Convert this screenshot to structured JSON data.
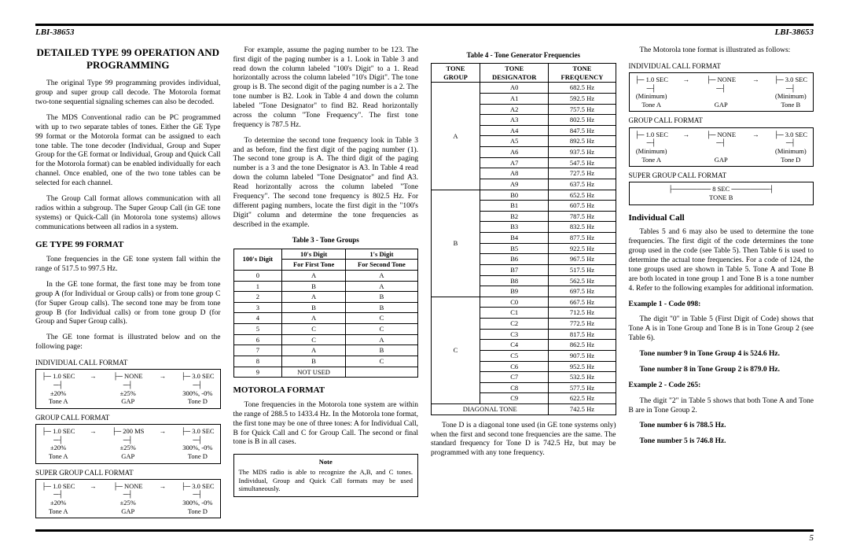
{
  "doc_id": "LBI-38653",
  "page_number": "5",
  "title": "DETAILED TYPE 99 OPERATION AND PROGRAMMING",
  "para1": "The original Type 99 programming provides individual, group and super group call decode. The Motorola format two-tone sequential signaling schemes can also be decoded.",
  "para2": "The MDS Conventional radio can be PC programmed with up to two separate tables of tones. Either the GE Type 99 format or the Motorola format can be assigned to each tone table. The tone decoder (Individual, Group and Super Group for the GE format or Individual, Group and Quick Call for the Motorola format) can be enabled individually for each channel. Once enabled, one of the two tone tables can be selected for each channel.",
  "para3": "The Group Call format allows communication with all radios within a subgroup. The Super Group Call (in GE tone systems) or Quick-Call (in Motorola tone systems) allows communications between all radios in a system.",
  "ge_h": "GE TYPE 99 FORMAT",
  "ge_p1": "Tone frequencies in the GE tone system fall within the range of 517.5 to 997.5 Hz.",
  "ge_p2": "In the GE tone format, the first tone may be from tone group A (for Individual or Group calls) or from tone group C (for Super Group calls). The second tone may be from tone group B (for Individual calls) or from tone group D (for Group and Super Group calls).",
  "ge_p3": "The GE tone format is illustrated below and on the following page:",
  "fmt_ind": "INDIVIDUAL CALL FORMAT",
  "fmt_grp": "GROUP CALL FORMAT",
  "fmt_sgrp": "SUPER GROUP CALL FORMAT",
  "ge_ind": {
    "c1a": "1.0 SEC",
    "c1b": "±20%",
    "c1c": "Tone A",
    "c2a": "NONE",
    "c2b": "±25%",
    "c2c": "GAP",
    "c3a": "3.0 SEC",
    "c3b": "300%, -0%",
    "c3c": "Tone D"
  },
  "ge_grp": {
    "c1a": "1.0 SEC",
    "c1b": "±20%",
    "c1c": "Tone A",
    "c2a": "200 MS",
    "c2b": "±25%",
    "c2c": "GAP",
    "c3a": "3.0 SEC",
    "c3b": "300%, -0%",
    "c3c": "Tone D"
  },
  "ge_sgrp": {
    "c1a": "1.0 SEC",
    "c1b": "±20%",
    "c1c": "Tone A",
    "c2a": "NONE",
    "c2b": "±25%",
    "c2c": "GAP",
    "c3a": "3.0 SEC",
    "c3b": "300%, -0%",
    "c3c": "Tone D"
  },
  "ex_p1": "For example, assume the paging number to be 123. The first digit of the paging number is a 1. Look in Table 3 and read down the column labeled \"100's Digit\" to a 1. Read horizontally across the column labeled \"10's Digit\". The tone group is B. The second digit of the paging number is a 2. The tone number is B2. Look in Table 4 and down the column labeled \"Tone Designator\" to find B2. Read horizontally across the column \"Tone Frequency\". The first tone frequency is 787.5 Hz.",
  "ex_p2": "To determine the second tone frequency look in Table 3 and as before, find the first digit of the paging number (1). The second tone group is A. The third digit of the paging number is a 3 and the tone Designator is A3. In Table 4 read down the column labeled \"Tone Designator\" and find A3. Read horizontally across the column labeled \"Tone Frequency\". The second tone frequency is 802.5 Hz. For different paging numbers, locate the first digit in the \"100's Digit\" column and determine the tone frequencies as described in the example.",
  "t3_cap": "Table 3 - Tone Groups",
  "t3_h1": "100's Digit",
  "t3_h2": "10's Digit",
  "t3_h3": "1's Digit",
  "t3_sub1": "For First Tone",
  "t3_sub2": "For Second Tone",
  "t3_rows": [
    [
      "0",
      "A",
      "A"
    ],
    [
      "1",
      "B",
      "A"
    ],
    [
      "2",
      "A",
      "B"
    ],
    [
      "3",
      "B",
      "B"
    ],
    [
      "4",
      "A",
      "C"
    ],
    [
      "5",
      "C",
      "C"
    ],
    [
      "6",
      "C",
      "A"
    ],
    [
      "7",
      "A",
      "B"
    ],
    [
      "8",
      "B",
      "C"
    ],
    [
      "9",
      "NOT USED",
      ""
    ]
  ],
  "mot_h": "MOTOROLA FORMAT",
  "mot_p1": "Tone frequencies in the Motorola tone system are within the range of 288.5 to 1433.4 Hz. In the Motorola tone format, the first tone may be one of three tones: A for Individual Call, B for Quick Call and C for Group Call. The second or final tone is B in all cases.",
  "note_h": "Note",
  "note_p": "The MDS radio is able to recognize the A,B, and C tones. Individual, Group and Quick Call formats may be used simultaneously.",
  "t4_cap": "Table 4 - Tone Generator Frequencies",
  "t4_h1": "TONE GROUP",
  "t4_h2": "TONE DESIGNATOR",
  "t4_h3": "TONE FREQUENCY",
  "t4_groupA": "A",
  "t4_groupB": "B",
  "t4_groupC": "C",
  "t4_diag": "DIAGONAL TONE",
  "t4_a": [
    [
      "A0",
      "682.5 Hz"
    ],
    [
      "A1",
      "592.5 Hz"
    ],
    [
      "A2",
      "757.5 Hz"
    ],
    [
      "A3",
      "802.5 Hz"
    ],
    [
      "A4",
      "847.5 Hz"
    ],
    [
      "A5",
      "892.5 Hz"
    ],
    [
      "A6",
      "937.5 Hz"
    ],
    [
      "A7",
      "547.5 Hz"
    ],
    [
      "A8",
      "727.5 Hz"
    ],
    [
      "A9",
      "637.5 Hz"
    ]
  ],
  "t4_b": [
    [
      "B0",
      "652.5 Hz"
    ],
    [
      "B1",
      "607.5 Hz"
    ],
    [
      "B2",
      "787.5 Hz"
    ],
    [
      "B3",
      "832.5 Hz"
    ],
    [
      "B4",
      "877.5 Hz"
    ],
    [
      "B5",
      "922.5 Hz"
    ],
    [
      "B6",
      "967.5 Hz"
    ],
    [
      "B7",
      "517.5 Hz"
    ],
    [
      "B8",
      "562.5 Hz"
    ],
    [
      "B9",
      "697.5 Hz"
    ]
  ],
  "t4_c": [
    [
      "C0",
      "667.5 Hz"
    ],
    [
      "C1",
      "712.5 Hz"
    ],
    [
      "C2",
      "772.5 Hz"
    ],
    [
      "C3",
      "817.5 Hz"
    ],
    [
      "C4",
      "862.5 Hz"
    ],
    [
      "C5",
      "907.5 Hz"
    ],
    [
      "C6",
      "952.5 Hz"
    ],
    [
      "C7",
      "532.5 Hz"
    ],
    [
      "C8",
      "577.5 Hz"
    ],
    [
      "C9",
      "622.5 Hz"
    ]
  ],
  "t4_diag_row": [
    "",
    "742.5 Hz"
  ],
  "td_p": "Tone D is a diagonal tone used (in GE tone systems only) when the first and second tone frequencies are the same. The standard frequency for Tone D is 742.5 Hz, but may be programmed with any tone frequency.",
  "mot_p2": "The Motorola tone format is illustrated as follows:",
  "m_ind": {
    "c1a": "1.0 SEC",
    "c1b": "(Minimum)",
    "c1c": "Tone A",
    "c2a": "NONE",
    "c2c": "GAP",
    "c3a": "3.0 SEC",
    "c3b": "(Minimum)",
    "c3c": "Tone B"
  },
  "m_grp": {
    "c1a": "1.0 SEC",
    "c1b": "(Minimum)",
    "c1c": "Tone A",
    "c2a": "NONE",
    "c2c": "GAP",
    "c3a": "3.0 SEC",
    "c3b": "(Minimum)",
    "c3c": "Tone D"
  },
  "m_sgrp": {
    "l1": "8 SEC",
    "l2": "TONE B"
  },
  "indcall_h": "Individual Call",
  "ic_p1": "Tables 5 and 6 may also be used to determine the tone frequencies. The first digit of the code determines the tone group used in the code (see Table 5). Then Table 6 is used to determine the actual tone frequencies. For a code of 124, the tone groups used are shown in Table 5. Tone A and Tone B are both located in tone group 1 and Tone B is a tone number 4. Refer to the following examples for additional information.",
  "ex1_h": "Example 1 - Code 098:",
  "ex1_p": "The digit \"0\" in Table 5 (First Digit of Code) shows that Tone A is in Tone Group and Tone B is in Tone Group 2 (see Table 6).",
  "ex1_b1": "Tone number 9 in Tone Group 4 is 524.6 Hz.",
  "ex1_b2": "Tone number 8 in Tone Group 2 is 879.0 Hz.",
  "ex2_h": "Example 2 - Code 265:",
  "ex2_p": "The digit \"2\" in Table 5 shows that both Tone A and Tone B are in Tone Group 2.",
  "ex2_b1": "Tone number 6 is 788.5 Hz.",
  "ex2_b2": "Tone number 5 is 746.8 Hz."
}
